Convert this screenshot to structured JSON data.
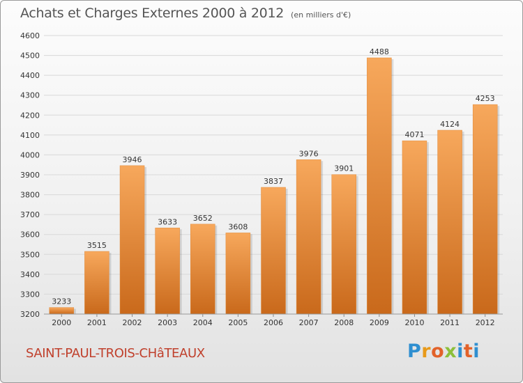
{
  "title": "Achats et Charges Externes 2000 à 2012",
  "unit_label": "(en milliers d'€)",
  "city": "SAINT-PAUL-TROIS-CHâTEAUX",
  "logo": {
    "letters": [
      "P",
      "r",
      "o",
      "x",
      "i",
      "t",
      "i"
    ],
    "colors": [
      "#2f8fd0",
      "#e89a1a",
      "#e2622a",
      "#8cbf3a",
      "#2f8fd0",
      "#e2622a",
      "#2f8fd0"
    ]
  },
  "colors": {
    "bar_top": "#f7a85c",
    "bar_bottom": "#c9691b",
    "grid": "#d8d8d8",
    "axis_text": "#333333",
    "city_text": "#c0402c"
  },
  "chart_data": {
    "type": "bar",
    "title": "Achats et Charges Externes 2000 à 2012",
    "xlabel": "",
    "ylabel": "",
    "categories": [
      "2000",
      "2001",
      "2002",
      "2003",
      "2004",
      "2005",
      "2006",
      "2007",
      "2008",
      "2009",
      "2010",
      "2011",
      "2012"
    ],
    "values": [
      3233,
      3515,
      3946,
      3633,
      3652,
      3608,
      3837,
      3976,
      3901,
      4488,
      4071,
      4124,
      4253
    ],
    "ylim": [
      3200,
      4600
    ],
    "yticks": [
      3200,
      3300,
      3400,
      3500,
      3600,
      3700,
      3800,
      3900,
      4000,
      4100,
      4200,
      4300,
      4400,
      4500,
      4600
    ],
    "grid": true
  }
}
